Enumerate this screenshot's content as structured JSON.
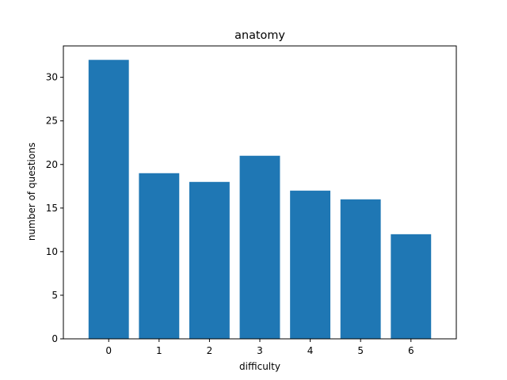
{
  "chart_data": {
    "type": "bar",
    "title": "anatomy",
    "xlabel": "difficulty",
    "ylabel": "number of questions",
    "categories": [
      "0",
      "1",
      "2",
      "3",
      "4",
      "5",
      "6"
    ],
    "values": [
      32,
      19,
      18,
      21,
      17,
      16,
      12
    ],
    "ylim": [
      0,
      33.6
    ],
    "yticks": [
      0,
      5,
      10,
      15,
      20,
      25,
      30
    ],
    "xticks": [
      0,
      1,
      2,
      3,
      4,
      5,
      6
    ],
    "xlim": [
      -0.9,
      6.9
    ],
    "bar_color": "#1f77b4",
    "grid": false,
    "legend": "none"
  }
}
